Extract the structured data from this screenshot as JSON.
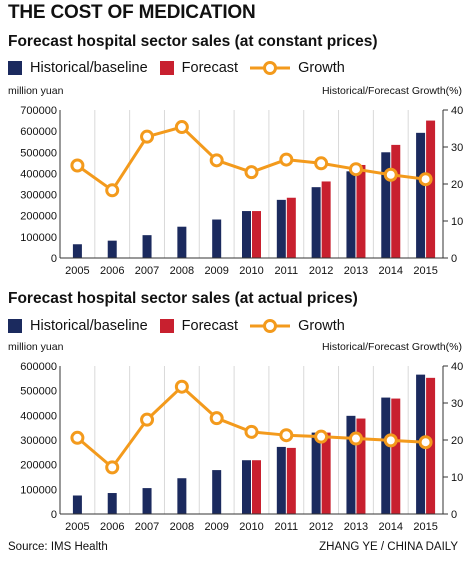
{
  "page": {
    "title": "THE COST OF MEDICATION",
    "source": "Source: IMS Health",
    "credit": "ZHANG YE / CHINA DAILY"
  },
  "legend": {
    "historical": "Historical/baseline",
    "forecast": "Forecast",
    "growth": "Growth"
  },
  "colors": {
    "historical": "#1b2a5e",
    "forecast": "#c8202f",
    "growth": "#f39a1c",
    "grid": "#d9d9d9"
  },
  "chart_data": [
    {
      "type": "bar",
      "title": "Forecast hospital sector sales (at constant prices)",
      "ylabel_left": "million yuan",
      "ylabel_right": "Historical/Forecast Growth(%)",
      "categories": [
        "2005",
        "2006",
        "2007",
        "2008",
        "2009",
        "2010",
        "2011",
        "2012",
        "2013",
        "2014",
        "2015"
      ],
      "ylim": [
        0,
        700000
      ],
      "yticks": [
        "0",
        "100000",
        "200000",
        "300000",
        "400000",
        "500000",
        "600000",
        "700000"
      ],
      "y2lim": [
        0,
        40
      ],
      "y2ticks": [
        "0",
        "10",
        "20",
        "30",
        "40"
      ],
      "series": [
        {
          "name": "Historical/baseline",
          "axis": "left",
          "values": [
            65000,
            82000,
            108000,
            148000,
            182000,
            222000,
            275000,
            335000,
            410000,
            500000,
            592000
          ]
        },
        {
          "name": "Forecast",
          "axis": "left",
          "values": [
            null,
            null,
            null,
            null,
            null,
            222000,
            285000,
            362000,
            440000,
            535000,
            650000
          ]
        },
        {
          "name": "Growth",
          "axis": "right",
          "type": "line",
          "values": [
            25,
            18.3,
            32.8,
            35.4,
            26.4,
            23.2,
            26.6,
            25.6,
            24,
            22.5,
            21.3
          ]
        }
      ]
    },
    {
      "type": "bar",
      "title": "Forecast hospital sector sales (at actual prices)",
      "ylabel_left": "million yuan",
      "ylabel_right": "Historical/Forecast Growth(%)",
      "categories": [
        "2005",
        "2006",
        "2007",
        "2008",
        "2009",
        "2010",
        "2011",
        "2012",
        "2013",
        "2014",
        "2015"
      ],
      "ylim": [
        0,
        600000
      ],
      "yticks": [
        "0",
        "100000",
        "200000",
        "300000",
        "400000",
        "500000",
        "600000"
      ],
      "y2lim": [
        0,
        40
      ],
      "y2ticks": [
        "0",
        "10",
        "20",
        "30",
        "40"
      ],
      "series": [
        {
          "name": "Historical/baseline",
          "axis": "left",
          "values": [
            75000,
            85000,
            105000,
            145000,
            178000,
            218000,
            272000,
            330000,
            398000,
            472000,
            565000
          ]
        },
        {
          "name": "Forecast",
          "axis": "left",
          "values": [
            null,
            null,
            null,
            null,
            null,
            218000,
            268000,
            330000,
            387000,
            468000,
            552000
          ]
        },
        {
          "name": "Growth",
          "axis": "right",
          "type": "line",
          "values": [
            20.6,
            12.6,
            25.5,
            34.4,
            25.9,
            22.2,
            21.3,
            20.9,
            20.4,
            19.9,
            19.4
          ]
        }
      ]
    }
  ]
}
